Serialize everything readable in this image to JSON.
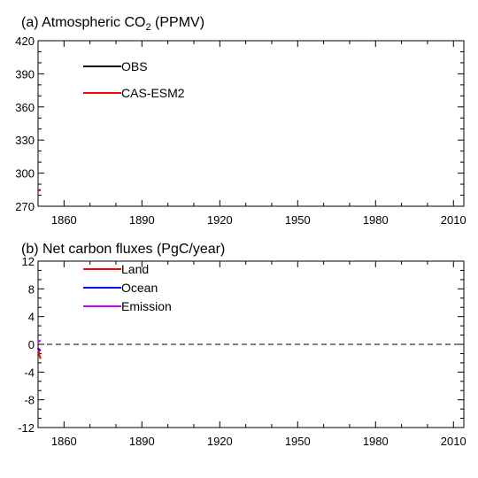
{
  "chart_data": [
    {
      "type": "line",
      "title_main": "(a) Atmospheric CO",
      "title_sub": "2",
      "title_tail": " (PPMV)",
      "xlim": [
        1850,
        2014
      ],
      "ylim": [
        270,
        420
      ],
      "x_ticks": [
        1860,
        1890,
        1920,
        1950,
        1980,
        2010
      ],
      "y_ticks": [
        270,
        300,
        330,
        360,
        390,
        420
      ],
      "legend_position": "top-left",
      "series": [
        {
          "name": "OBS",
          "color": "#000000",
          "x": [
            1850,
            1851
          ],
          "y": [
            284.5,
            284.6
          ]
        },
        {
          "name": "CAS-ESM2",
          "color": "#ff0000",
          "x": [
            1850,
            1851
          ],
          "y": [
            284.3,
            284.4
          ]
        }
      ]
    },
    {
      "type": "line",
      "title": "(b) Net carbon fluxes (PgC/year)",
      "xlim": [
        1850,
        2014
      ],
      "ylim": [
        -12,
        12
      ],
      "x_ticks": [
        1860,
        1890,
        1920,
        1950,
        1980,
        2010
      ],
      "y_ticks": [
        -12,
        -8,
        -4,
        0,
        4,
        8,
        12
      ],
      "reference_line": 0,
      "legend_position": "top-left",
      "series": [
        {
          "name": "Land",
          "color": "#ff0000",
          "x": [
            1850,
            1850.5,
            1851
          ],
          "y": [
            -0.5,
            -1.6,
            -2.1
          ]
        },
        {
          "name": "Ocean",
          "color": "#0000ff",
          "x": [
            1850,
            1851
          ],
          "y": [
            -0.6,
            -0.9
          ]
        },
        {
          "name": "Emission",
          "color": "#cc00ff",
          "x": [
            1850,
            1851
          ],
          "y": [
            0.3,
            0.6
          ]
        }
      ]
    }
  ]
}
